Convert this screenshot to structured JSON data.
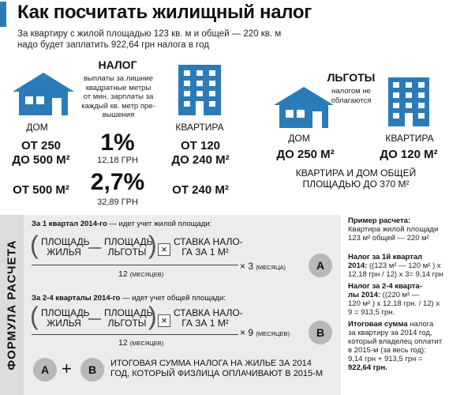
{
  "header": {
    "title": "Как посчитать жилищный налог",
    "subtitle_line1": "За квартиру с жилой площадью 123 кв. м и общей — 220 кв. м",
    "subtitle_line2": "надо будет заплатить 922,64 грн налога в год"
  },
  "tax": {
    "heading": "НАЛОГ",
    "description": [
      "выплаты за лишние",
      "квадратные метры",
      "от мин. зарплаты за",
      "каждый кв. метр пре-",
      "вышения"
    ],
    "house_label": "ДОМ",
    "house_range_1a": "ОТ 250",
    "house_range_1b": "ДО 500 М²",
    "house_range_2": "ОТ 500 М²",
    "apartment_label": "КВАРТИРА",
    "apt_range_1a": "ОТ 120",
    "apt_range_1b": "ДО 240 М²",
    "apt_range_2": "ОТ 240 М²",
    "rate_1": "1%",
    "rate_1_grn": "12,18 ГРН",
    "rate_2": "2,7%",
    "rate_2_grn": "32,89 ГРН"
  },
  "benefits": {
    "heading": "ЛЬГОТЫ",
    "description": [
      "налогом не",
      "облагаются"
    ],
    "house_label": "ДОМ",
    "house_value": "ДО 250 М²",
    "apartment_label": "КВАРТИРА",
    "apartment_value": "ДО 120 М²",
    "combined_line1": "КВАРТИРА И ДОМ ОБЩЕЙ",
    "combined_line2": "ПЛОЩАДЬЮ ДО 370 М²"
  },
  "formula": {
    "side_label": "ФОРМУЛА РАСЧЕТА",
    "q1_head_bold": "За 1 квартал 2014-го",
    "q1_head_rest": " — идет учет жилой площади:",
    "q24_head_bold": "За 2-4 кварталы 2014-го",
    "q24_head_rest": " — идет учет общей площади:",
    "area_l1": "ПЛОЩАДЬ",
    "area_l2": "ЖИЛЬЯ",
    "benefit_l1": "ПЛОЩАДЬ",
    "benefit_l2": "ЛЬГОТЫ",
    "rate_l1": "СТАВКА НАЛО-",
    "rate_l2": "ГА ЗА 1 М²",
    "minus": "—",
    "times": "×",
    "denom_num": "12",
    "denom_unit": "(МЕСЯЦЕВ)",
    "q1_mult_num": "× 3",
    "q1_mult_unit": "(МЕСЯЦА)",
    "q24_mult_num": "× 9",
    "q24_mult_unit": "(МЕСЯЦЕВ)",
    "circle_a": "A",
    "circle_b": "B",
    "plus": "+",
    "final_line1": "ИТОГОВАЯ СУММА НАЛОГА НА ЖИЛЬЕ ЗА 2014",
    "final_line2": "ГОД, КОТОРЫЙ ФИЗЛИЦА ОПЛАЧИВАЮТ В 2015-М"
  },
  "example": {
    "head": "Пример расчета:",
    "intro_l1": "Квартира жилой площади",
    "intro_l2": "123 м² общей — 220 м²",
    "q1_head_l1": "Налог за 1й квартал",
    "q1_head_l2": "2014:",
    "q1_l1": " ((123 м² — 120 м² ) х",
    "q1_l2": "12,18 грн / 12) х 3= 9,14 грн",
    "q24_head_l1": "Налог за 2-4 кварта-",
    "q24_head_l2": "лы 2014:",
    "q24_l1": " ((220 м² —",
    "q24_l2": "120 м² ) х 12,18 грн. / 12) х",
    "q24_l3": "9 = 913,5 грн.",
    "total_bold": "Итоговая сумма",
    "total_l1": " налога",
    "total_l2": "за квартиру за 2014 год,",
    "total_l3": "который владелец оплатит",
    "total_l4": "в 2015-м (за весь год):",
    "total_l5": "9,14 грн + 913,5 грн =",
    "total_result": "922,64 грн."
  }
}
